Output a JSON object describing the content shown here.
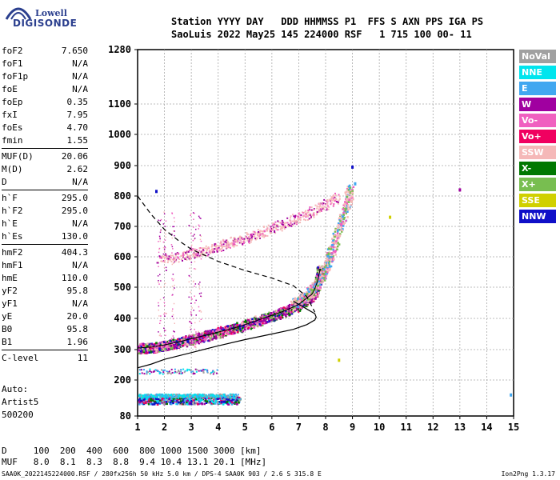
{
  "logo": {
    "line1": "Lowell",
    "line2": "DIGISONDE"
  },
  "header": {
    "line1": "Station YYYY DAY   DDD HHMMSS P1  FFS S AXN PPS IGA PS",
    "line2": "SaoLuis 2022 May25 145 224000 RSF   1 715 100 00- 11"
  },
  "params": [
    [
      [
        "foF2",
        "7.650"
      ],
      [
        "foF1",
        "N/A"
      ],
      [
        "foF1p",
        "N/A"
      ],
      [
        "foE",
        "N/A"
      ],
      [
        "foEp",
        "0.35"
      ],
      [
        "fxI",
        "7.95"
      ],
      [
        "foEs",
        "4.70"
      ],
      [
        "fmin",
        "1.55"
      ]
    ],
    [
      [
        "MUF(D)",
        "20.06"
      ],
      [
        "M(D)",
        "2.62"
      ],
      [
        "D",
        "N/A"
      ]
    ],
    [
      [
        "h`F",
        "295.0"
      ],
      [
        "h`F2",
        "295.0"
      ],
      [
        "h`E",
        "N/A"
      ],
      [
        "h`Es",
        "130.0"
      ]
    ],
    [
      [
        "hmF2",
        "404.3"
      ],
      [
        "hmF1",
        "N/A"
      ],
      [
        "hmE",
        "110.0"
      ],
      [
        "yF2",
        "95.8"
      ],
      [
        "yF1",
        "N/A"
      ],
      [
        "yE",
        "20.0"
      ],
      [
        "B0",
        "95.8"
      ],
      [
        "B1",
        "1.96"
      ]
    ],
    [
      [
        "C-level",
        "11"
      ]
    ]
  ],
  "auto": {
    "line1": "Auto:",
    "line2": "Artist5",
    "line3": "500200"
  },
  "bottom": {
    "row1": "D     100  200  400  600  800 1000 1500 3000 [km]",
    "row2": "MUF   8.0  8.1  8.3  8.8  9.4 10.4 13.1 20.1 [MHz]"
  },
  "footer": "SAA0K_2022145224000.RSF / 280fx256h 50 kHz 5.0 km / DPS-4 SAA0K 903 / 2.6 S 315.8 E",
  "version": "Ion2Png 1.3.17",
  "legend": [
    {
      "label": "NoVal",
      "color": "#a0a0a0"
    },
    {
      "label": "NNE",
      "color": "#00e5ee"
    },
    {
      "label": "E",
      "color": "#41a7f0"
    },
    {
      "label": "W",
      "color": "#a000a0"
    },
    {
      "label": "Vo-",
      "color": "#f060c0"
    },
    {
      "label": "Vo+",
      "color": "#f00060"
    },
    {
      "label": "SSW",
      "color": "#f5b8b8"
    },
    {
      "label": "X-",
      "color": "#007800"
    },
    {
      "label": "X+",
      "color": "#78be50"
    },
    {
      "label": "SSE",
      "color": "#d0d000"
    },
    {
      "label": "NNW",
      "color": "#1010c8"
    }
  ],
  "chart_data": {
    "type": "scatter",
    "xlim": [
      1,
      15
    ],
    "ylim": [
      80,
      1280
    ],
    "x_ticks": [
      1,
      2,
      3,
      4,
      5,
      6,
      7,
      8,
      9,
      10,
      11,
      12,
      13,
      14,
      15
    ],
    "y_ticks": [
      80,
      200,
      300,
      400,
      500,
      600,
      700,
      800,
      900,
      1000,
      1100,
      1280
    ],
    "grid": true,
    "series": [
      {
        "name": "O-trace",
        "x": [
          1.0,
          1.5,
          2.0,
          2.5,
          3.0,
          3.5,
          4.0,
          4.5,
          5.0,
          5.5,
          6.0,
          6.5,
          7.0,
          7.3,
          7.5,
          7.6,
          7.7,
          7.8
        ],
        "y": [
          305,
          308,
          315,
          324,
          335,
          345,
          356,
          367,
          380,
          395,
          410,
          425,
          445,
          465,
          478,
          495,
          520,
          560
        ]
      },
      {
        "name": "X-trace",
        "x": [
          6.8,
          7.2,
          7.5,
          7.8,
          8.0,
          8.2,
          8.5,
          8.8,
          8.9
        ],
        "y": [
          450,
          470,
          495,
          530,
          570,
          620,
          700,
          780,
          830
        ]
      },
      {
        "name": "O-multiple",
        "x": [
          1.8,
          2.5,
          3.0,
          3.5,
          4.0,
          4.5,
          5.0,
          5.5,
          6.0,
          6.5,
          7.0,
          7.5,
          8.0,
          8.5
        ],
        "y": [
          595,
          600,
          610,
          622,
          635,
          648,
          662,
          678,
          695,
          712,
          730,
          750,
          775,
          800
        ]
      },
      {
        "name": "Es-trace",
        "x": [
          1.0,
          2.0,
          3.0,
          4.0,
          4.8
        ],
        "y": [
          135,
          135,
          135,
          135,
          135
        ]
      },
      {
        "name": "Es-upper",
        "x": [
          1.0,
          1.5,
          2.0,
          2.5,
          3.0,
          3.5,
          4.0,
          4.7
        ],
        "y": [
          150,
          150,
          150,
          150,
          150,
          150,
          150,
          150
        ]
      },
      {
        "name": "Es-multiple",
        "x": [
          1.0,
          2.0,
          3.0,
          4.0
        ],
        "y": [
          230,
          230,
          230,
          230
        ]
      }
    ],
    "profile": {
      "x": [
        1.0,
        1.5,
        2.0,
        3.0,
        4.0,
        5.0,
        6.0,
        6.8,
        7.3,
        7.6,
        7.65,
        7.6,
        7.3,
        6.8
      ],
      "y": [
        240,
        252,
        268,
        290,
        312,
        332,
        350,
        365,
        380,
        395,
        404,
        415,
        430,
        455
      ]
    },
    "profile_dashed": {
      "x": [
        1.0,
        1.5,
        2.0,
        2.5,
        3.0,
        3.5,
        4.0,
        5.0,
        6.0,
        6.8,
        7.3,
        7.6
      ],
      "y": [
        800,
        740,
        690,
        655,
        625,
        605,
        585,
        555,
        530,
        505,
        470,
        420
      ]
    },
    "stray_points": [
      {
        "x": 13.0,
        "y": 820,
        "color": "#a000a0"
      },
      {
        "x": 10.4,
        "y": 730,
        "color": "#d0d000"
      },
      {
        "x": 8.5,
        "y": 265,
        "color": "#d0d000"
      },
      {
        "x": 14.9,
        "y": 150,
        "color": "#41a7f0"
      },
      {
        "x": 9.1,
        "y": 840,
        "color": "#41a7f0"
      },
      {
        "x": 9.0,
        "y": 895,
        "color": "#1010c8"
      },
      {
        "x": 1.7,
        "y": 815,
        "color": "#1010c8"
      }
    ]
  }
}
